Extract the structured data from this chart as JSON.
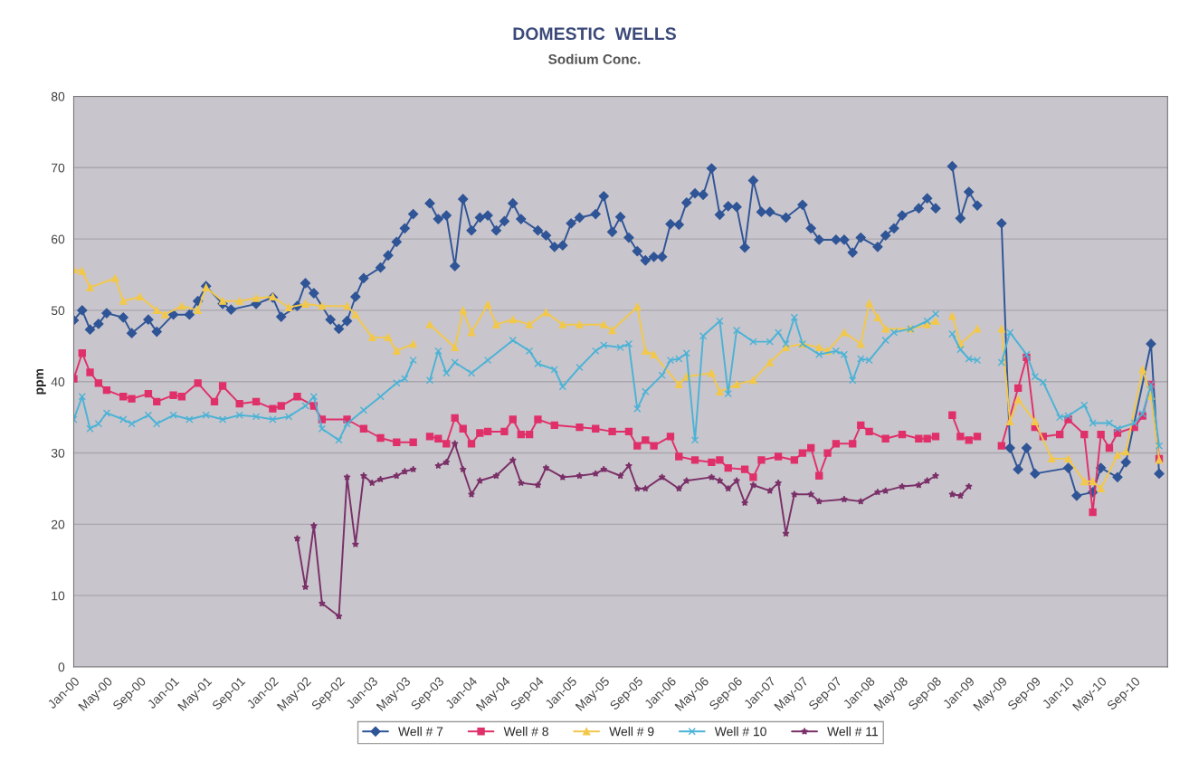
{
  "chart_data": {
    "type": "line",
    "title": "DOMESTIC  WELLS",
    "subtitle": "Sodium Conc.",
    "ylabel": "ppm",
    "xlim": [
      "2000-01",
      "2011-01"
    ],
    "xticks": [
      {
        "value": "2000-01",
        "label": "Jan-00"
      },
      {
        "value": "2000-05",
        "label": "May-00"
      },
      {
        "value": "2000-09",
        "label": "Sep-00"
      },
      {
        "value": "2001-01",
        "label": "Jan-01"
      },
      {
        "value": "2001-05",
        "label": "May-01"
      },
      {
        "value": "2001-09",
        "label": "Sep-01"
      },
      {
        "value": "2002-01",
        "label": "Jan-02"
      },
      {
        "value": "2002-05",
        "label": "May-02"
      },
      {
        "value": "2002-09",
        "label": "Sep-02"
      },
      {
        "value": "2003-01",
        "label": "Jan-03"
      },
      {
        "value": "2003-05",
        "label": "May-03"
      },
      {
        "value": "2003-09",
        "label": "Sep-03"
      },
      {
        "value": "2004-01",
        "label": "Jan-04"
      },
      {
        "value": "2004-05",
        "label": "May-04"
      },
      {
        "value": "2004-09",
        "label": "Sep-04"
      },
      {
        "value": "2005-01",
        "label": "Jan-05"
      },
      {
        "value": "2005-05",
        "label": "May-05"
      },
      {
        "value": "2005-09",
        "label": "Sep-05"
      },
      {
        "value": "2006-01",
        "label": "Jan-06"
      },
      {
        "value": "2006-05",
        "label": "May-06"
      },
      {
        "value": "2006-09",
        "label": "Sep-06"
      },
      {
        "value": "2007-01",
        "label": "Jan-07"
      },
      {
        "value": "2007-05",
        "label": "May-07"
      },
      {
        "value": "2007-09",
        "label": "Sep-07"
      },
      {
        "value": "2008-01",
        "label": "Jan-08"
      },
      {
        "value": "2008-05",
        "label": "May-08"
      },
      {
        "value": "2008-09",
        "label": "Sep-08"
      },
      {
        "value": "2009-01",
        "label": "Jan-09"
      },
      {
        "value": "2009-05",
        "label": "May-09"
      },
      {
        "value": "2009-09",
        "label": "Sep-09"
      },
      {
        "value": "2010-01",
        "label": "Jan-10"
      },
      {
        "value": "2010-05",
        "label": "May-10"
      },
      {
        "value": "2010-09",
        "label": "Sep-10"
      }
    ],
    "ylim": [
      0,
      80
    ],
    "yticks": [
      0,
      10,
      20,
      30,
      40,
      50,
      60,
      70,
      80
    ],
    "grid": "y",
    "legend": "bottom",
    "series": [
      {
        "name": "Well # 7",
        "color": "#2f5597",
        "marker": "diamond",
        "x": [
          "2000-01",
          "2000-02",
          "2000-03",
          "2000-04",
          "2000-05",
          "2000-07",
          "2000-08",
          "2000-10",
          "2000-11",
          "2001-01",
          "2001-03",
          "2001-04",
          "2001-05",
          "2001-07",
          "2001-08",
          "2001-11",
          "2002-01",
          "2002-02",
          "2002-04",
          "2002-05",
          "2002-06",
          "2002-08",
          "2002-09",
          "2002-10",
          "2002-11",
          "2002-12",
          "2003-02",
          "2003-03",
          "2003-04",
          "2003-05",
          "2003-06",
          "2003-07",
          "2003-08",
          "2003-09",
          "2003-10",
          "2003-11",
          "2003-12",
          "2004-01",
          "2004-02",
          "2004-03",
          "2004-04",
          "2004-05",
          "2004-06",
          "2004-07",
          "2004-09",
          "2004-10",
          "2004-11",
          "2004-12",
          "2005-01",
          "2005-02",
          "2005-04",
          "2005-05",
          "2005-06",
          "2005-07",
          "2005-08",
          "2005-09",
          "2005-10",
          "2005-11",
          "2005-12",
          "2006-01",
          "2006-02",
          "2006-03",
          "2006-04",
          "2006-05",
          "2006-06",
          "2006-07",
          "2006-08",
          "2006-09",
          "2006-10",
          "2006-11",
          "2006-12",
          "2007-01",
          "2007-03",
          "2007-05",
          "2007-06",
          "2007-07",
          "2007-09",
          "2007-10",
          "2007-11",
          "2007-12",
          "2008-02",
          "2008-03",
          "2008-04",
          "2008-05",
          "2008-07",
          "2008-08",
          "2008-09",
          "2008-10",
          "2008-11",
          "2008-12",
          "2009-01",
          "2009-02",
          "2009-03",
          "2009-05",
          "2009-06",
          "2009-07",
          "2009-08",
          "2009-09",
          "2010-01",
          "2010-02",
          "2010-04",
          "2010-05",
          "2010-07",
          "2010-08",
          "2010-11",
          "2010-12"
        ],
        "values": [
          48.6,
          50,
          47.3,
          48.1,
          49.6,
          49,
          46.8,
          48.7,
          47,
          49.4,
          49.4,
          51.3,
          53.4,
          50.9,
          50.1,
          50.9,
          51.8,
          49.1,
          50.6,
          53.8,
          52.4,
          48.7,
          47.4,
          48.5,
          51.9,
          54.5,
          56,
          57.7,
          59.6,
          61.5,
          63.5,
          null,
          65,
          62.8,
          63.3,
          56.2,
          65.6,
          61.2,
          63,
          63.3,
          61.2,
          62.5,
          65,
          62.8,
          61.2,
          60.5,
          58.9,
          59.1,
          62.2,
          63,
          63.5,
          66,
          61,
          63.1,
          60.2,
          58.3,
          57,
          57.5,
          57.5,
          62.1,
          62,
          65.1,
          66.4,
          66.2,
          69.9,
          63.4,
          64.6,
          64.5,
          58.8,
          68.2,
          63.8,
          63.8,
          63,
          64.8,
          61.5,
          59.9,
          59.9,
          59.9,
          58.1,
          60.2,
          58.9,
          60.5,
          61.5,
          63.3,
          64.3,
          65.7,
          64.3,
          null,
          70.2,
          62.9,
          66.6,
          64.7,
          null,
          62.2,
          30.7,
          27.7,
          30.7,
          27.1,
          27.9,
          24,
          24.5,
          27.9,
          26.6,
          28.7,
          45.3,
          27.1
        ]
      },
      {
        "name": "Well # 8",
        "color": "#e0306a",
        "marker": "square",
        "x": [
          "2000-01",
          "2000-02",
          "2000-03",
          "2000-04",
          "2000-05",
          "2000-07",
          "2000-08",
          "2000-10",
          "2000-11",
          "2001-01",
          "2001-02",
          "2001-04",
          "2001-06",
          "2001-07",
          "2001-09",
          "2001-11",
          "2002-01",
          "2002-02",
          "2002-04",
          "2002-06",
          "2002-07",
          "2002-10",
          "2002-12",
          "2003-02",
          "2003-04",
          "2003-06",
          "2003-07",
          "2003-08",
          "2003-09",
          "2003-10",
          "2003-11",
          "2003-12",
          "2004-01",
          "2004-02",
          "2004-03",
          "2004-05",
          "2004-06",
          "2004-07",
          "2004-08",
          "2004-09",
          "2004-11",
          "2005-02",
          "2005-04",
          "2005-06",
          "2005-08",
          "2005-09",
          "2005-10",
          "2005-11",
          "2006-01",
          "2006-02",
          "2006-04",
          "2006-06",
          "2006-07",
          "2006-08",
          "2006-10",
          "2006-11",
          "2006-12",
          "2007-02",
          "2007-04",
          "2007-05",
          "2007-06",
          "2007-07",
          "2007-08",
          "2007-09",
          "2007-11",
          "2007-12",
          "2008-01",
          "2008-03",
          "2008-05",
          "2008-07",
          "2008-08",
          "2008-09",
          "2008-10",
          "2008-11",
          "2008-12",
          "2009-01",
          "2009-02",
          "2009-03",
          "2009-05",
          "2009-07",
          "2009-08",
          "2009-09",
          "2009-10",
          "2009-12",
          "2010-01",
          "2010-03",
          "2010-04",
          "2010-05",
          "2010-06",
          "2010-07",
          "2010-09",
          "2010-10",
          "2010-11",
          "2010-12"
        ],
        "values": [
          40.4,
          44,
          41.3,
          39.8,
          38.8,
          37.9,
          37.6,
          38.3,
          37.2,
          38.1,
          37.9,
          39.8,
          37.2,
          39.4,
          36.9,
          37.2,
          36.2,
          36.6,
          37.9,
          36.6,
          34.7,
          34.7,
          33.4,
          32.1,
          31.5,
          31.5,
          null,
          32.3,
          32,
          31.3,
          34.9,
          33.4,
          31.3,
          32.8,
          33,
          33,
          34.7,
          32.6,
          32.6,
          34.7,
          33.9,
          33.6,
          33.4,
          33,
          33,
          31,
          31.8,
          31,
          32.3,
          29.5,
          29,
          28.7,
          29,
          27.9,
          27.7,
          26.6,
          29,
          29.5,
          29,
          30,
          30.7,
          26.8,
          30,
          31.3,
          31.3,
          33.9,
          33,
          32,
          32.6,
          32,
          32,
          32.3,
          null,
          35.3,
          32.3,
          31.8,
          32.3,
          null,
          31,
          39.1,
          43.4,
          33.6,
          32.3,
          32.6,
          34.7,
          32.6,
          21.7,
          32.6,
          30.7,
          32.8,
          33.6,
          35.2,
          39.6,
          29.2
        ]
      },
      {
        "name": "Well # 9",
        "color": "#f2c84b",
        "marker": "triangle",
        "x": [
          "2000-01",
          "2000-02",
          "2000-03",
          "2000-06",
          "2000-07",
          "2000-09",
          "2000-11",
          "2000-12",
          "2001-02",
          "2001-04",
          "2001-05",
          "2001-07",
          "2001-09",
          "2001-11",
          "2002-01",
          "2002-03",
          "2002-05",
          "2002-07",
          "2002-10",
          "2002-11",
          "2003-01",
          "2003-03",
          "2003-04",
          "2003-06",
          "2003-07",
          "2003-08",
          "2003-11",
          "2003-12",
          "2004-01",
          "2004-03",
          "2004-04",
          "2004-06",
          "2004-08",
          "2004-10",
          "2004-12",
          "2005-02",
          "2005-05",
          "2005-06",
          "2005-09",
          "2005-10",
          "2005-11",
          "2006-02",
          "2006-03",
          "2006-06",
          "2006-07",
          "2006-09",
          "2006-11",
          "2007-01",
          "2007-03",
          "2007-05",
          "2007-07",
          "2007-08",
          "2007-10",
          "2007-12",
          "2008-01",
          "2008-02",
          "2008-03",
          "2008-06",
          "2008-08",
          "2008-09",
          "2008-10",
          "2008-11",
          "2008-12",
          "2009-02",
          "2009-03",
          "2009-05",
          "2009-06",
          "2009-07",
          "2009-09",
          "2009-11",
          "2010-01",
          "2010-03",
          "2010-04",
          "2010-05",
          "2010-07",
          "2010-08",
          "2010-10",
          "2010-11",
          "2010-12"
        ],
        "values": [
          55.7,
          55.5,
          53.2,
          54.5,
          51.3,
          51.9,
          50,
          49.4,
          50.6,
          50,
          53.2,
          51.3,
          51.3,
          51.7,
          51.9,
          50.4,
          50.9,
          50.6,
          50.6,
          49.4,
          46.2,
          46.2,
          44.3,
          45.3,
          null,
          48,
          44.8,
          50,
          46.9,
          50.8,
          48,
          48.7,
          48,
          49.7,
          48,
          48,
          48,
          47.2,
          50.5,
          44.3,
          43.8,
          39.6,
          40.7,
          41.2,
          38.6,
          39.6,
          40.2,
          42.7,
          44.8,
          45.3,
          44.8,
          44.3,
          46.9,
          45.3,
          51,
          49,
          47.4,
          47.4,
          48,
          48.5,
          null,
          49.2,
          45.3,
          47.4,
          null,
          47.4,
          34.4,
          37.5,
          34.4,
          29.2,
          29.2,
          26,
          26,
          25,
          29.7,
          30.2,
          41.7,
          38,
          29
        ]
      },
      {
        "name": "Well # 10",
        "color": "#4bb3d6",
        "marker": "cross",
        "x": [
          "2000-01",
          "2000-02",
          "2000-03",
          "2000-04",
          "2000-05",
          "2000-07",
          "2000-08",
          "2000-10",
          "2000-11",
          "2001-01",
          "2001-03",
          "2001-05",
          "2001-07",
          "2001-09",
          "2001-11",
          "2002-01",
          "2002-03",
          "2002-05",
          "2002-06",
          "2002-07",
          "2002-09",
          "2002-10",
          "2002-12",
          "2003-02",
          "2003-04",
          "2003-05",
          "2003-06",
          "2003-07",
          "2003-08",
          "2003-09",
          "2003-10",
          "2003-11",
          "2004-01",
          "2004-03",
          "2004-06",
          "2004-08",
          "2004-09",
          "2004-11",
          "2004-12",
          "2005-02",
          "2005-04",
          "2005-05",
          "2005-07",
          "2005-08",
          "2005-09",
          "2005-10",
          "2005-12",
          "2006-01",
          "2006-02",
          "2006-03",
          "2006-04",
          "2006-05",
          "2006-07",
          "2006-08",
          "2006-09",
          "2006-11",
          "2007-01",
          "2007-02",
          "2007-03",
          "2007-04",
          "2007-05",
          "2007-07",
          "2007-09",
          "2007-10",
          "2007-11",
          "2007-12",
          "2008-01",
          "2008-03",
          "2008-04",
          "2008-06",
          "2008-08",
          "2008-09",
          "2008-10",
          "2008-11",
          "2008-12",
          "2009-01",
          "2009-02",
          "2009-03",
          "2009-05",
          "2009-06",
          "2009-08",
          "2009-09",
          "2009-10",
          "2009-12",
          "2010-01",
          "2010-03",
          "2010-04",
          "2010-06",
          "2010-07",
          "2010-09",
          "2010-10",
          "2010-11",
          "2010-12"
        ],
        "values": [
          34.7,
          37.9,
          33.4,
          34.1,
          35.6,
          34.7,
          34.1,
          35.3,
          34.1,
          35.3,
          34.7,
          35.3,
          34.7,
          35.3,
          35.1,
          34.7,
          35.1,
          36.6,
          37.9,
          33.4,
          31.8,
          34.1,
          36,
          37.9,
          39.8,
          40.4,
          43,
          null,
          40.2,
          44.3,
          41.2,
          42.7,
          41.2,
          43,
          45.8,
          44.3,
          42.5,
          41.7,
          39.3,
          42,
          44.3,
          45.1,
          44.8,
          45.3,
          36.2,
          38.6,
          40.9,
          43,
          43.2,
          44,
          31.8,
          46.4,
          48.5,
          38.3,
          47.2,
          45.6,
          45.6,
          46.9,
          45.3,
          49,
          45.3,
          43.8,
          44.3,
          43.8,
          40.2,
          43.2,
          43,
          45.8,
          46.9,
          47.4,
          48.5,
          49.5,
          null,
          46.7,
          44.5,
          43.2,
          43,
          null,
          42.7,
          46.9,
          43.8,
          40.7,
          39.9,
          35,
          35.2,
          36.7,
          34.2,
          34.2,
          33.4,
          34.2,
          35.5,
          39.6,
          31
        ]
      },
      {
        "name": "Well # 11",
        "color": "#7a3068",
        "marker": "star",
        "x": [
          "2002-04",
          "2002-05",
          "2002-06",
          "2002-07",
          "2002-09",
          "2002-10",
          "2002-11",
          "2002-12",
          "2003-01",
          "2003-02",
          "2003-04",
          "2003-05",
          "2003-06",
          "2003-07",
          "2003-09",
          "2003-10",
          "2003-11",
          "2003-12",
          "2004-01",
          "2004-02",
          "2004-04",
          "2004-06",
          "2004-07",
          "2004-09",
          "2004-10",
          "2004-12",
          "2005-02",
          "2005-04",
          "2005-05",
          "2005-07",
          "2005-08",
          "2005-09",
          "2005-10",
          "2005-12",
          "2006-02",
          "2006-03",
          "2006-06",
          "2006-07",
          "2006-08",
          "2006-09",
          "2006-10",
          "2006-11",
          "2007-01",
          "2007-02",
          "2007-03",
          "2007-04",
          "2007-06",
          "2007-07",
          "2007-10",
          "2007-12",
          "2008-02",
          "2008-03",
          "2008-05",
          "2008-07",
          "2008-08",
          "2008-09",
          "2008-10",
          "2008-11",
          "2008-12",
          "2009-01"
        ],
        "values": [
          18,
          11.2,
          19.8,
          8.9,
          7.1,
          26.6,
          17.2,
          26.8,
          25.8,
          26.3,
          26.8,
          27.4,
          27.7,
          null,
          28.2,
          28.7,
          31.3,
          27.7,
          24.2,
          26.1,
          26.8,
          29,
          25.8,
          25.5,
          27.9,
          26.6,
          26.8,
          27.1,
          27.7,
          26.8,
          28.2,
          25,
          25,
          26.6,
          25,
          26.1,
          26.6,
          26.1,
          25,
          26.1,
          23,
          25.5,
          24.7,
          25.8,
          18.7,
          24.2,
          24.2,
          23.2,
          23.5,
          23.2,
          24.5,
          24.7,
          25.3,
          25.5,
          26.1,
          26.8,
          null,
          24.2,
          24,
          25.3
        ]
      }
    ]
  }
}
